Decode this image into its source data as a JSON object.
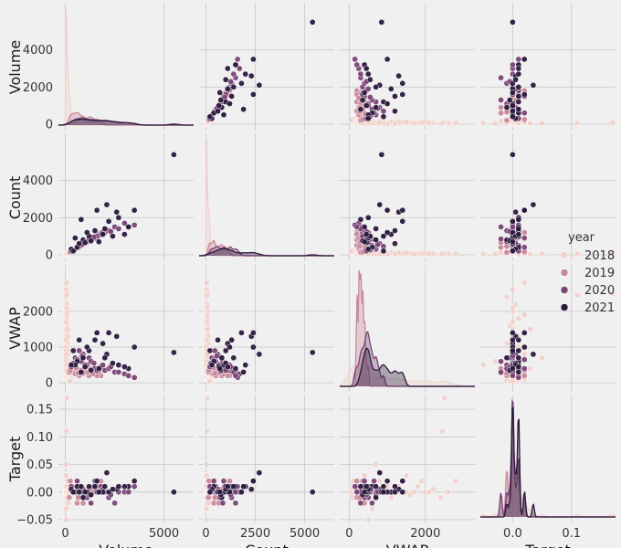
{
  "chart_data": {
    "type": "scatter",
    "title": "",
    "variables": [
      "Volume",
      "Count",
      "VWAP",
      "Target"
    ],
    "ticks": {
      "Volume": [
        0,
        5000
      ],
      "Count": [
        0,
        2500,
        5000
      ],
      "VWAP": [
        0,
        2000
      ],
      "Target": [
        0.0,
        0.1
      ]
    },
    "y_ticks": {
      "Volume": [
        0,
        2000,
        4000
      ],
      "Count": [
        0,
        2000,
        4000
      ],
      "VWAP": [
        0,
        1000,
        2000
      ],
      "Target": [
        -0.05,
        0.0,
        0.05,
        0.1,
        0.15
      ]
    },
    "y_tick_labels": {
      "Target": [
        "−0.05",
        "0.00",
        "0.05",
        "0.10",
        "0.15"
      ]
    },
    "x_tick_labels": {
      "Target": [
        "0.0",
        "0.1"
      ]
    },
    "ranges": {
      "Volume": [
        -350,
        6500
      ],
      "Count": [
        -350,
        6500
      ],
      "VWAP": [
        -250,
        3300
      ],
      "Target": [
        -0.055,
        0.175
      ]
    },
    "diagonal": "kde",
    "grid": true,
    "legend": {
      "title": "year",
      "placement": "right",
      "entries": [
        "2018",
        "2019",
        "2020",
        "2021"
      ]
    },
    "colors": {
      "2018": "#f1d3cd",
      "2019": "#c98a9b",
      "2020": "#7a4476",
      "2021": "#2b1a3d"
    },
    "series": [
      {
        "name": "2018",
        "points": [
          [
            40,
            30,
            2600,
            0.0
          ],
          [
            60,
            50,
            2800,
            0.02
          ],
          [
            30,
            20,
            2400,
            -0.01
          ],
          [
            80,
            60,
            2200,
            0.005
          ],
          [
            50,
            40,
            2000,
            0.0
          ],
          [
            70,
            50,
            1800,
            0.01
          ],
          [
            90,
            70,
            1600,
            -0.005
          ],
          [
            100,
            80,
            1400,
            0.02
          ],
          [
            45,
            35,
            1300,
            0.0
          ],
          [
            110,
            90,
            1200,
            0.01
          ],
          [
            120,
            100,
            1100,
            -0.01
          ],
          [
            60,
            50,
            1000,
            0.005
          ],
          [
            130,
            110,
            900,
            0.0
          ],
          [
            140,
            120,
            800,
            0.02
          ],
          [
            35,
            30,
            700,
            0.01
          ],
          [
            150,
            130,
            600,
            -0.02
          ],
          [
            80,
            60,
            500,
            0.0
          ],
          [
            25,
            20,
            400,
            0.03
          ],
          [
            160,
            130,
            350,
            0.0
          ],
          [
            30,
            20,
            300,
            0.01
          ],
          [
            200,
            150,
            250,
            -0.01
          ],
          [
            220,
            180,
            200,
            0.005
          ],
          [
            55,
            40,
            150,
            0.0
          ],
          [
            180,
            140,
            120,
            0.0
          ],
          [
            70,
            60,
            100,
            0.02
          ],
          [
            90,
            70,
            2500,
            0.17
          ],
          [
            60,
            50,
            2450,
            0.11
          ],
          [
            100,
            80,
            2000,
            0.0
          ],
          [
            40,
            30,
            1500,
            0.03
          ],
          [
            50,
            40,
            700,
            0.05
          ],
          [
            30,
            25,
            600,
            -0.03
          ],
          [
            60,
            40,
            500,
            -0.05
          ],
          [
            260,
            200,
            100,
            0.0
          ],
          [
            300,
            250,
            80,
            0.01
          ],
          [
            240,
            190,
            60,
            -0.01
          ],
          [
            120,
            100,
            1500,
            0.0
          ],
          [
            140,
            110,
            1300,
            0.01
          ],
          [
            70,
            55,
            2100,
            0.0
          ],
          [
            85,
            70,
            1900,
            0.02
          ],
          [
            45,
            35,
            1700,
            0.0
          ],
          [
            20,
            15,
            1000,
            0.01
          ],
          [
            35,
            30,
            1200,
            0.0
          ],
          [
            95,
            80,
            300,
            0.004
          ],
          [
            180,
            150,
            200,
            0.003
          ],
          [
            210,
            170,
            150,
            0.0
          ],
          [
            250,
            200,
            120,
            0.006
          ],
          [
            130,
            100,
            400,
            -0.004
          ],
          [
            75,
            60,
            350,
            0.0
          ],
          [
            40,
            30,
            900,
            0.01
          ],
          [
            60,
            45,
            800,
            0.0
          ],
          [
            110,
            90,
            100,
            0.0
          ],
          [
            150,
            120,
            90,
            0.005
          ],
          [
            170,
            140,
            70,
            0.0
          ],
          [
            190,
            150,
            50,
            -0.005
          ],
          [
            230,
            180,
            40,
            0.0
          ]
        ]
      },
      {
        "name": "2019",
        "points": [
          [
            400,
            200,
            350,
            0.0
          ],
          [
            700,
            400,
            300,
            0.01
          ],
          [
            900,
            600,
            250,
            -0.01
          ],
          [
            1200,
            800,
            200,
            0.005
          ],
          [
            1500,
            1000,
            250,
            0.0
          ],
          [
            1800,
            1200,
            200,
            0.02
          ],
          [
            1000,
            700,
            350,
            0.0
          ],
          [
            600,
            400,
            400,
            -0.02
          ],
          [
            300,
            200,
            300,
            0.01
          ],
          [
            500,
            350,
            250,
            0.0
          ],
          [
            1600,
            1100,
            200,
            0.01
          ],
          [
            1100,
            750,
            300,
            -0.005
          ],
          [
            800,
            550,
            350,
            0.005
          ],
          [
            1300,
            900,
            400,
            0.0
          ],
          [
            200,
            120,
            300,
            -0.01
          ],
          [
            250,
            150,
            350,
            0.02
          ],
          [
            1400,
            900,
            250,
            0.0
          ],
          [
            700,
            500,
            200,
            -0.01
          ],
          [
            450,
            300,
            450,
            0.0
          ],
          [
            350,
            250,
            500,
            0.01
          ],
          [
            900,
            650,
            280,
            -0.02
          ],
          [
            1700,
            1000,
            320,
            0.0
          ],
          [
            1250,
            800,
            380,
            0.005
          ],
          [
            550,
            380,
            420,
            0.0
          ],
          [
            650,
            450,
            270,
            -0.01
          ]
        ]
      },
      {
        "name": "2020",
        "points": [
          [
            500,
            300,
            700,
            0.0
          ],
          [
            800,
            500,
            600,
            0.01
          ],
          [
            1100,
            700,
            500,
            -0.01
          ],
          [
            1500,
            900,
            400,
            0.02
          ],
          [
            2000,
            1200,
            350,
            0.0
          ],
          [
            2500,
            1500,
            300,
            -0.02
          ],
          [
            3000,
            1700,
            250,
            0.0
          ],
          [
            3500,
            1600,
            150,
            0.01
          ],
          [
            1200,
            800,
            700,
            -0.005
          ],
          [
            900,
            600,
            800,
            0.005
          ],
          [
            700,
            450,
            900,
            0.0
          ],
          [
            1800,
            1100,
            450,
            0.01
          ],
          [
            2200,
            1300,
            400,
            -0.01
          ],
          [
            400,
            250,
            550,
            0.0
          ],
          [
            600,
            400,
            650,
            0.02
          ],
          [
            1000,
            650,
            500,
            0.0
          ],
          [
            1300,
            850,
            600,
            -0.02
          ],
          [
            1600,
            1000,
            350,
            0.0
          ],
          [
            300,
            200,
            450,
            0.01
          ],
          [
            2700,
            1400,
            300,
            0.0
          ],
          [
            1900,
            1200,
            500,
            0.005
          ],
          [
            2300,
            1250,
            450,
            -0.005
          ],
          [
            850,
            550,
            750,
            0.0
          ],
          [
            1450,
            950,
            550,
            0.01
          ],
          [
            3200,
            1500,
            200,
            0.0
          ]
        ]
      },
      {
        "name": "2021",
        "points": [
          [
            5500,
            5400,
            850,
            0.0
          ],
          [
            3500,
            2400,
            1000,
            0.02
          ],
          [
            2600,
            2300,
            1300,
            0.005
          ],
          [
            3200,
            1500,
            400,
            0.01
          ],
          [
            2200,
            1800,
            1400,
            0.0
          ],
          [
            1200,
            1000,
            900,
            0.01
          ],
          [
            1900,
            1100,
            1100,
            0.0
          ],
          [
            2700,
            2000,
            500,
            0.01
          ],
          [
            2100,
            2700,
            800,
            0.035
          ],
          [
            1600,
            2400,
            1400,
            0.02
          ],
          [
            1100,
            1200,
            1000,
            0.0
          ],
          [
            900,
            800,
            700,
            -0.01
          ],
          [
            600,
            400,
            600,
            0.01
          ],
          [
            500,
            900,
            500,
            0.0
          ],
          [
            1500,
            1300,
            1200,
            0.01
          ],
          [
            1000,
            650,
            450,
            0.0
          ],
          [
            2400,
            1000,
            550,
            0.005
          ],
          [
            800,
            1900,
            300,
            0.01
          ],
          [
            700,
            600,
            1200,
            0.0
          ],
          [
            300,
            300,
            500,
            0.005
          ],
          [
            1300,
            750,
            350,
            -0.005
          ],
          [
            2000,
            1400,
            700,
            0.01
          ],
          [
            1700,
            700,
            400,
            0.0
          ],
          [
            400,
            200,
            900,
            0.0
          ],
          [
            3000,
            1100,
            450,
            0.01
          ]
        ]
      }
    ]
  }
}
